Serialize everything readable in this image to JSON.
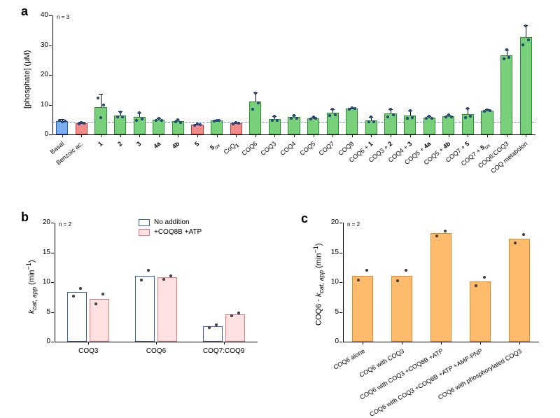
{
  "panel_a": {
    "label": "a",
    "n_annotation": "n = 3",
    "ylabel": "[phosphate] (μM)",
    "ylim": [
      0,
      40
    ],
    "yticks": [
      0,
      10,
      20,
      30,
      40
    ],
    "dotted_ref": 4.2,
    "dotted_color": "#4a6fb0",
    "bars": [
      {
        "label": "Basal",
        "value": 4.5,
        "err": 0.7,
        "pts": [
          4.7,
          4.3,
          4.5
        ],
        "fill": "#7aaef0",
        "stroke": "#2a5fb0"
      },
      {
        "label": "Benzoic ac.",
        "value": 3.8,
        "err": 0.4,
        "pts": [
          3.6,
          4.0,
          3.8
        ],
        "fill": "#f28a8a",
        "stroke": "#c03a3a"
      },
      {
        "label": "1",
        "value": 9.2,
        "err": 4.5,
        "pts": [
          12.2,
          5.6,
          9.8
        ],
        "fill": "#79d07b",
        "stroke": "#2a9030"
      },
      {
        "label": "2",
        "value": 6.4,
        "err": 1.3,
        "pts": [
          5.8,
          7.5,
          5.9
        ],
        "fill": "#79d07b",
        "stroke": "#2a9030"
      },
      {
        "label": "3",
        "value": 5.8,
        "err": 1.6,
        "pts": [
          4.8,
          7.4,
          5.2
        ],
        "fill": "#79d07b",
        "stroke": "#2a9030"
      },
      {
        "label": "4a",
        "value": 4.9,
        "err": 0.5,
        "pts": [
          4.6,
          5.3,
          4.8
        ],
        "fill": "#79d07b",
        "stroke": "#2a9030"
      },
      {
        "label": "4b",
        "value": 4.4,
        "err": 0.6,
        "pts": [
          4.2,
          5.0,
          4.0
        ],
        "fill": "#79d07b",
        "stroke": "#2a9030"
      },
      {
        "label": "5",
        "value": 3.3,
        "err": 0.3,
        "pts": [
          3.1,
          3.5,
          3.3
        ],
        "fill": "#f28a8a",
        "stroke": "#c03a3a"
      },
      {
        "label": "5ₒₓ",
        "value": 4.6,
        "err": 0.3,
        "pts": [
          4.4,
          4.8,
          4.6
        ],
        "fill": "#79d07b",
        "stroke": "#2a9030"
      },
      {
        "label": "CoQ₁",
        "value": 3.8,
        "err": 0.3,
        "pts": [
          3.6,
          4.0,
          3.8
        ],
        "fill": "#f28a8a",
        "stroke": "#c03a3a"
      },
      {
        "label": "COQ6",
        "value": 11.0,
        "err": 3.2,
        "pts": [
          8.5,
          13.8,
          10.7
        ],
        "fill": "#79d07b",
        "stroke": "#2a9030"
      },
      {
        "label": "COQ3",
        "value": 5.2,
        "err": 1.0,
        "pts": [
          4.6,
          6.2,
          4.8
        ],
        "fill": "#79d07b",
        "stroke": "#2a9030"
      },
      {
        "label": "COQ4",
        "value": 5.8,
        "err": 0.6,
        "pts": [
          5.5,
          6.4,
          5.5
        ],
        "fill": "#79d07b",
        "stroke": "#2a9030"
      },
      {
        "label": "COQ5",
        "value": 5.4,
        "err": 0.5,
        "pts": [
          5.1,
          5.8,
          5.3
        ],
        "fill": "#79d07b",
        "stroke": "#2a9030"
      },
      {
        "label": "COQ7",
        "value": 7.2,
        "err": 1.3,
        "pts": [
          6.4,
          8.5,
          6.7
        ],
        "fill": "#79d07b",
        "stroke": "#2a9030"
      },
      {
        "label": "COQ9",
        "value": 8.7,
        "err": 0.3,
        "pts": [
          8.5,
          9.0,
          8.6
        ],
        "fill": "#79d07b",
        "stroke": "#2a9030"
      },
      {
        "label": "COQ6 + 1",
        "value": 4.8,
        "err": 1.1,
        "pts": [
          4.2,
          6.0,
          4.2
        ],
        "fill": "#79d07b",
        "stroke": "#2a9030"
      },
      {
        "label": "COQ3 + 2",
        "value": 7.0,
        "err": 1.5,
        "pts": [
          6.0,
          8.5,
          6.5
        ],
        "fill": "#79d07b",
        "stroke": "#2a9030"
      },
      {
        "label": "COQ4 + 3",
        "value": 6.4,
        "err": 1.5,
        "pts": [
          5.5,
          8.0,
          5.7
        ],
        "fill": "#79d07b",
        "stroke": "#2a9030"
      },
      {
        "label": "COQ5 + 4a",
        "value": 5.6,
        "err": 0.5,
        "pts": [
          5.3,
          6.1,
          5.4
        ],
        "fill": "#79d07b",
        "stroke": "#2a9030"
      },
      {
        "label": "COQ5 + 4b",
        "value": 6.1,
        "err": 0.5,
        "pts": [
          5.8,
          6.5,
          6.0
        ],
        "fill": "#79d07b",
        "stroke": "#2a9030"
      },
      {
        "label": "COQ7 + 5",
        "value": 6.8,
        "err": 1.8,
        "pts": [
          5.6,
          8.6,
          6.2
        ],
        "fill": "#79d07b",
        "stroke": "#2a9030"
      },
      {
        "label": "COQ7 + 5ₒₓ",
        "value": 8.0,
        "err": 0.4,
        "pts": [
          7.8,
          8.3,
          7.9
        ],
        "fill": "#79d07b",
        "stroke": "#2a9030"
      },
      {
        "label": "COQ6:COQ3",
        "value": 26.6,
        "err": 1.8,
        "pts": [
          25.5,
          28.5,
          25.8
        ],
        "fill": "#79d07b",
        "stroke": "#2a9030"
      },
      {
        "label": "COQ metabolon",
        "value": 32.8,
        "err": 4.0,
        "pts": [
          30.2,
          36.5,
          31.7
        ],
        "fill": "#79d07b",
        "stroke": "#2a9030"
      }
    ]
  },
  "panel_b": {
    "label": "b",
    "n_annotation": "n = 2",
    "ylabel_html": "<i>k</i><sub><i>cat, app</i></sub> (min<sup>−1</sup>)",
    "ylim": [
      0,
      20
    ],
    "yticks": [
      0,
      5,
      10,
      15,
      20
    ],
    "legend": [
      {
        "label": "No addition",
        "fill": "#ffffff",
        "stroke": "#3a5fb8"
      },
      {
        "label": "+COQ8B +ATP",
        "fill": "#ffe1e1",
        "stroke": "#e07a7a"
      }
    ],
    "groups": [
      {
        "label": "COQ3",
        "bars": [
          {
            "value": 8.3,
            "pts": [
              7.6,
              9.0
            ],
            "fill": "#ffffff",
            "stroke": "#3a5fb8"
          },
          {
            "value": 7.2,
            "pts": [
              6.4,
              8.0
            ],
            "fill": "#ffe1e1",
            "stroke": "#e07a7a"
          }
        ]
      },
      {
        "label": "COQ6",
        "bars": [
          {
            "value": 11.1,
            "pts": [
              10.4,
              12.0
            ],
            "fill": "#ffffff",
            "stroke": "#3a5fb8"
          },
          {
            "value": 10.8,
            "pts": [
              10.5,
              11.1
            ],
            "fill": "#ffe1e1",
            "stroke": "#e07a7a"
          }
        ]
      },
      {
        "label": "COQ7:COQ9",
        "bars": [
          {
            "value": 2.6,
            "pts": [
              2.4,
              2.8
            ],
            "fill": "#ffffff",
            "stroke": "#3a5fb8"
          },
          {
            "value": 4.6,
            "pts": [
              4.4,
              4.8
            ],
            "fill": "#ffe1e1",
            "stroke": "#e07a7a"
          }
        ]
      }
    ]
  },
  "panel_c": {
    "label": "c",
    "n_annotation": "n = 2",
    "ylabel_html": "COQ6 - <i>k</i><sub><i>cat, app</i></sub> (min<sup>−1</sup>)",
    "ylim": [
      0,
      20
    ],
    "yticks": [
      0,
      5,
      10,
      15,
      20
    ],
    "bar_fill": "#fdbb6b",
    "bar_stroke": "#e08a2a",
    "bars": [
      {
        "label": "COQ6 alone",
        "value": 11.1,
        "pts": [
          10.3,
          12.0
        ]
      },
      {
        "label": "COQ6 with COQ3",
        "value": 11.1,
        "pts": [
          10.2,
          12.0
        ]
      },
      {
        "label": "COQ6 with COQ3 +COQ8B +ATP",
        "value": 18.2,
        "pts": [
          17.8,
          18.6
        ]
      },
      {
        "label": "COQ6 with COQ3 +COQ8B +ATP +AMP-PNP",
        "value": 10.1,
        "pts": [
          9.4,
          10.8
        ]
      },
      {
        "label": "COQ6 with phosphorylated COQ3",
        "value": 17.3,
        "pts": [
          16.6,
          18.0
        ]
      }
    ]
  },
  "colors": {
    "datapoint_a_stroke": "#1a3a6a",
    "datapoint_a_fill": "#2a5a9a",
    "datapoint_bc_stroke": "#303030",
    "datapoint_bc_fill": "#505050"
  }
}
